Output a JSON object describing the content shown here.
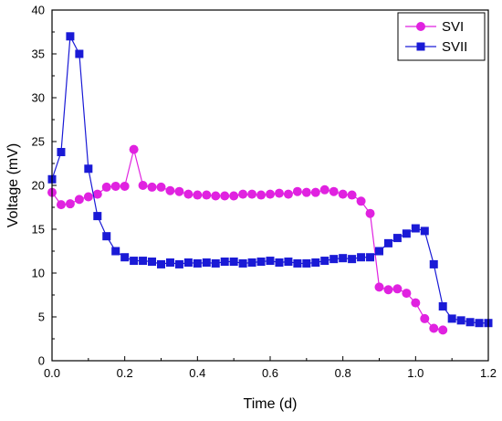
{
  "chart_data": {
    "type": "line",
    "xlabel": "Time (d)",
    "ylabel": "Voltage (mV)",
    "xlim": [
      0,
      1.2
    ],
    "ylim": [
      0,
      40
    ],
    "x_ticks": [
      0.0,
      0.2,
      0.4,
      0.6,
      0.8,
      1.0,
      1.2
    ],
    "x_tick_labels": [
      "0.0",
      "0.2",
      "0.4",
      "0.6",
      "0.8",
      "1.0",
      "1.2"
    ],
    "y_ticks": [
      0,
      5,
      10,
      15,
      20,
      25,
      30,
      35,
      40
    ],
    "y_tick_labels": [
      "0",
      "5",
      "10",
      "15",
      "20",
      "25",
      "30",
      "35",
      "40"
    ],
    "grid": false,
    "legend_position": "top-right",
    "series": [
      {
        "name": "SVI",
        "color": "#e022e0",
        "marker": "circle",
        "x": [
          0.0,
          0.025,
          0.05,
          0.075,
          0.1,
          0.125,
          0.15,
          0.175,
          0.2,
          0.225,
          0.25,
          0.275,
          0.3,
          0.325,
          0.35,
          0.375,
          0.4,
          0.425,
          0.45,
          0.475,
          0.5,
          0.525,
          0.55,
          0.575,
          0.6,
          0.625,
          0.65,
          0.675,
          0.7,
          0.725,
          0.75,
          0.775,
          0.8,
          0.825,
          0.85,
          0.875,
          0.9,
          0.925,
          0.95,
          0.975,
          1.0,
          1.025,
          1.05,
          1.075
        ],
        "y": [
          19.2,
          17.8,
          17.9,
          18.4,
          18.7,
          19.0,
          19.8,
          19.9,
          19.9,
          24.1,
          20.0,
          19.8,
          19.8,
          19.4,
          19.3,
          19.0,
          18.9,
          18.9,
          18.8,
          18.8,
          18.8,
          19.0,
          19.0,
          18.9,
          19.0,
          19.1,
          19.0,
          19.3,
          19.2,
          19.2,
          19.5,
          19.3,
          19.0,
          18.9,
          18.2,
          16.8,
          8.4,
          8.1,
          8.2,
          7.7,
          6.6,
          4.8,
          3.7,
          3.5
        ]
      },
      {
        "name": "SVII",
        "color": "#1a1ad6",
        "marker": "square",
        "x": [
          0.0,
          0.025,
          0.05,
          0.075,
          0.1,
          0.125,
          0.15,
          0.175,
          0.2,
          0.225,
          0.25,
          0.275,
          0.3,
          0.325,
          0.35,
          0.375,
          0.4,
          0.425,
          0.45,
          0.475,
          0.5,
          0.525,
          0.55,
          0.575,
          0.6,
          0.625,
          0.65,
          0.675,
          0.7,
          0.725,
          0.75,
          0.775,
          0.8,
          0.825,
          0.85,
          0.875,
          0.9,
          0.925,
          0.95,
          0.975,
          1.0,
          1.025,
          1.05,
          1.075,
          1.1,
          1.125,
          1.15,
          1.175,
          1.2
        ],
        "y": [
          20.7,
          23.8,
          37.0,
          35.0,
          21.9,
          16.5,
          14.2,
          12.5,
          11.8,
          11.4,
          11.4,
          11.3,
          11.0,
          11.2,
          11.0,
          11.2,
          11.1,
          11.2,
          11.1,
          11.3,
          11.3,
          11.1,
          11.2,
          11.3,
          11.4,
          11.2,
          11.3,
          11.1,
          11.1,
          11.2,
          11.4,
          11.6,
          11.7,
          11.6,
          11.8,
          11.8,
          12.5,
          13.4,
          14.0,
          14.5,
          15.1,
          14.8,
          11.0,
          6.2,
          4.8,
          4.6,
          4.4,
          4.3,
          4.3
        ]
      }
    ]
  }
}
